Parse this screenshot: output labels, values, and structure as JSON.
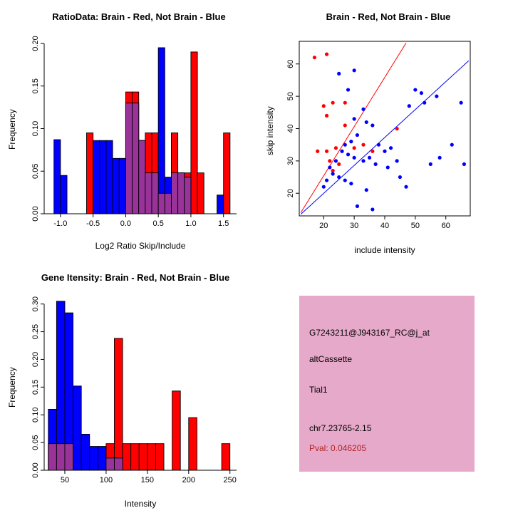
{
  "figure": {
    "background": "#FFFFFF",
    "colors": {
      "red": "#FF0000",
      "blue": "#0000FF",
      "overlap": "#993399",
      "axis": "#000000"
    }
  },
  "chart_data": [
    {
      "id": "ratio-hist",
      "type": "bar",
      "title": "RatioData: Brain - Red, Not Brain - Blue",
      "xlabel": "Log2 Ratio Skip/Include",
      "ylabel": "Frequency",
      "xlim": [
        -1.25,
        1.7
      ],
      "ylim": [
        0,
        0.205
      ],
      "xtick_vals": [
        -1.0,
        -0.5,
        0.0,
        0.5,
        1.0,
        1.5
      ],
      "xtick_labels": [
        "-1.0",
        "-0.5",
        "0.0",
        "0.5",
        "1.0",
        "1.5"
      ],
      "ytick_vals": [
        0,
        0.05,
        0.1,
        0.15,
        0.2
      ],
      "ytick_labels": [
        "0.00",
        "0.05",
        "0.10",
        "0.15",
        "0.20"
      ],
      "bin_width": 0.1,
      "overlap_color": "#993399",
      "series": [
        {
          "name": "Brain (red)",
          "color": "#FF0000",
          "bins": [
            [
              -0.6,
              0.095
            ],
            [
              0.0,
              0.143
            ],
            [
              0.1,
              0.143
            ],
            [
              0.2,
              0.086
            ],
            [
              0.3,
              0.095
            ],
            [
              0.4,
              0.095
            ],
            [
              0.5,
              0.024
            ],
            [
              0.6,
              0.024
            ],
            [
              0.7,
              0.095
            ],
            [
              0.8,
              0.048
            ],
            [
              0.9,
              0.048
            ],
            [
              1.0,
              0.19
            ],
            [
              1.1,
              0.048
            ],
            [
              1.5,
              0.095
            ]
          ]
        },
        {
          "name": "Not Brain (blue)",
          "color": "#0000FF",
          "bins": [
            [
              -1.1,
              0.087
            ],
            [
              -1.0,
              0.045
            ],
            [
              -0.5,
              0.086
            ],
            [
              -0.4,
              0.086
            ],
            [
              -0.3,
              0.086
            ],
            [
              -0.2,
              0.065
            ],
            [
              -0.1,
              0.065
            ],
            [
              0.0,
              0.13
            ],
            [
              0.1,
              0.13
            ],
            [
              0.2,
              0.086
            ],
            [
              0.3,
              0.048
            ],
            [
              0.4,
              0.048
            ],
            [
              0.5,
              0.195
            ],
            [
              0.6,
              0.043
            ],
            [
              0.7,
              0.048
            ],
            [
              0.8,
              0.048
            ],
            [
              0.9,
              0.043
            ],
            [
              1.4,
              0.022
            ]
          ]
        }
      ]
    },
    {
      "id": "scatter",
      "type": "scatter",
      "title": "Brain - Red, Not Brain - Blue",
      "xlabel": "include intensity",
      "ylabel": "skip intensity",
      "xlim": [
        12,
        68
      ],
      "ylim": [
        13,
        67
      ],
      "xtick_vals": [
        20,
        30,
        40,
        50,
        60
      ],
      "xtick_labels": [
        "20",
        "30",
        "40",
        "50",
        "60"
      ],
      "ytick_vals": [
        20,
        30,
        40,
        50,
        60
      ],
      "ytick_labels": [
        "20",
        "30",
        "40",
        "50",
        "60"
      ],
      "series": [
        {
          "name": "Brain (red)",
          "color": "#FF0000",
          "points": [
            [
              17,
              62
            ],
            [
              21,
              63
            ],
            [
              20,
              47
            ],
            [
              23,
              48
            ],
            [
              27,
              48
            ],
            [
              21,
              44
            ],
            [
              27,
              41
            ],
            [
              18,
              33
            ],
            [
              21,
              33
            ],
            [
              24,
              34
            ],
            [
              22,
              30
            ],
            [
              25,
              29
            ],
            [
              23,
              27
            ],
            [
              30,
              34
            ],
            [
              33,
              35
            ],
            [
              36,
              33
            ],
            [
              44,
              40
            ]
          ]
        },
        {
          "name": "Not Brain (blue)",
          "color": "#0000FF",
          "points": [
            [
              25,
              57
            ],
            [
              30,
              58
            ],
            [
              28,
              52
            ],
            [
              33,
              46
            ],
            [
              30,
              43
            ],
            [
              34,
              42
            ],
            [
              36,
              41
            ],
            [
              31,
              38
            ],
            [
              29,
              36
            ],
            [
              27,
              35
            ],
            [
              26,
              33
            ],
            [
              28,
              32
            ],
            [
              30,
              31
            ],
            [
              24,
              30
            ],
            [
              22,
              28
            ],
            [
              23,
              26
            ],
            [
              25,
              25
            ],
            [
              27,
              24
            ],
            [
              29,
              23
            ],
            [
              21,
              24
            ],
            [
              20,
              22
            ],
            [
              33,
              30
            ],
            [
              35,
              31
            ],
            [
              38,
              35
            ],
            [
              40,
              33
            ],
            [
              42,
              34
            ],
            [
              37,
              29
            ],
            [
              41,
              28
            ],
            [
              45,
              25
            ],
            [
              34,
              21
            ],
            [
              31,
              16
            ],
            [
              36,
              15
            ],
            [
              50,
              52
            ],
            [
              52,
              51
            ],
            [
              48,
              47
            ],
            [
              53,
              48
            ],
            [
              65,
              48
            ],
            [
              62,
              35
            ],
            [
              58,
              31
            ],
            [
              55,
              29
            ],
            [
              47,
              22
            ],
            [
              44,
              30
            ],
            [
              57,
              50
            ],
            [
              66,
              29
            ]
          ]
        }
      ],
      "lines": [
        {
          "name": "brain-fit-line",
          "color": "#FF0000",
          "x1": 12.5,
          "y1": 14,
          "x2": 47,
          "y2": 66.5
        },
        {
          "name": "notbrain-fit-line",
          "color": "#0000FF",
          "x1": 12.5,
          "y1": 13.5,
          "x2": 67.5,
          "y2": 61
        }
      ]
    },
    {
      "id": "gene-hist",
      "type": "bar",
      "title": "Gene Itensity: Brain - Red, Not Brain - Blue",
      "xlabel": "Intensity",
      "ylabel": "Frequency",
      "xlim": [
        25,
        258
      ],
      "ylim": [
        0,
        0.315
      ],
      "xtick_vals": [
        50,
        100,
        150,
        200,
        250
      ],
      "xtick_labels": [
        "50",
        "100",
        "150",
        "200",
        "250"
      ],
      "ytick_vals": [
        0,
        0.05,
        0.1,
        0.15,
        0.2,
        0.25,
        0.3
      ],
      "ytick_labels": [
        "0.00",
        "0.05",
        "0.10",
        "0.15",
        "0.20",
        "0.25",
        "0.30"
      ],
      "bin_width": 10,
      "overlap_color": "#993399",
      "series": [
        {
          "name": "Brain (red)",
          "color": "#FF0000",
          "bins": [
            [
              30,
              0.048
            ],
            [
              40,
              0.048
            ],
            [
              50,
              0.048
            ],
            [
              100,
              0.048
            ],
            [
              110,
              0.238
            ],
            [
              120,
              0.048
            ],
            [
              130,
              0.048
            ],
            [
              140,
              0.048
            ],
            [
              150,
              0.048
            ],
            [
              160,
              0.048
            ],
            [
              180,
              0.143
            ],
            [
              200,
              0.095
            ],
            [
              240,
              0.048
            ]
          ]
        },
        {
          "name": "Not Brain (blue)",
          "color": "#0000FF",
          "bins": [
            [
              30,
              0.11
            ],
            [
              40,
              0.305
            ],
            [
              50,
              0.284
            ],
            [
              60,
              0.152
            ],
            [
              70,
              0.065
            ],
            [
              80,
              0.043
            ],
            [
              90,
              0.043
            ],
            [
              100,
              0.022
            ],
            [
              110,
              0.022
            ]
          ]
        }
      ]
    }
  ],
  "info_panel": {
    "bg": "#E6A9C9",
    "probe_id": "G7243211@J943167_RC@j_at",
    "event_type": "altCassette",
    "gene": "Tial1",
    "location": "chr7.23765-2.15",
    "pval_label": "Pval: 0.046205",
    "pval_color": "#B22222"
  }
}
